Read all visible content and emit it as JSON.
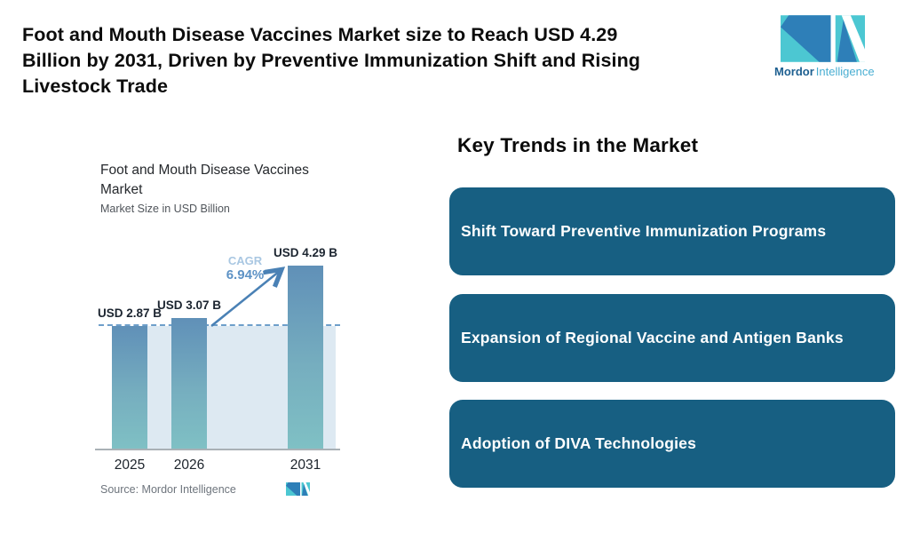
{
  "header": {
    "title_lines": [
      "Foot and Mouth Disease Vaccines Market size to Reach USD 4.29",
      "Billion by 2031, Driven by Preventive Immunization Shift and Rising",
      "Livestock Trade"
    ],
    "logo": {
      "name_bold": "Mordor",
      "name_light": "Intelligence"
    }
  },
  "chart": {
    "title_lines": [
      "Foot and Mouth Disease Vaccines",
      "Market"
    ],
    "subtitle": "Market Size in USD Billion",
    "cagr_label": "CAGR",
    "cagr_value": "6.94%",
    "source": "Source: Mordor Intelligence"
  },
  "chart_data": {
    "type": "bar",
    "title": "Foot and Mouth Disease Vaccines Market",
    "ylabel": "Market Size in USD Billion",
    "categories": [
      "2025",
      "2026",
      "2031"
    ],
    "values": [
      2.87,
      3.07,
      4.29
    ],
    "bar_labels": [
      "USD 2.87 B",
      "USD 3.07 B",
      "USD 4.29 B"
    ],
    "reference_value": 2.87,
    "annotations": [
      "CAGR 6.94%"
    ],
    "legend": "none",
    "grid": "off"
  },
  "trends": {
    "heading": "Key Trends in the Market",
    "items": [
      {
        "label": "Shift Toward Preventive Immunization Programs"
      },
      {
        "label": "Expansion of Regional Vaccine and Antigen Banks"
      },
      {
        "label": "Adoption of DIVA Technologies"
      }
    ]
  },
  "colors": {
    "card_background": "#175f82",
    "card_text": "#ffffff",
    "bar_gradient_top": "#6090b8",
    "bar_gradient_bottom": "#7fc0c4",
    "shaded_area": "#dde9f2",
    "dashed_reference_line": "#6e9fca",
    "arrow": "#4a81b5",
    "cagr_label": "#a9c7e2",
    "cagr_value": "#5d92c5",
    "logo_teal": "#4cc7d2",
    "logo_blue": "#2e7fb8",
    "headline_text": "#0c0c0c"
  }
}
